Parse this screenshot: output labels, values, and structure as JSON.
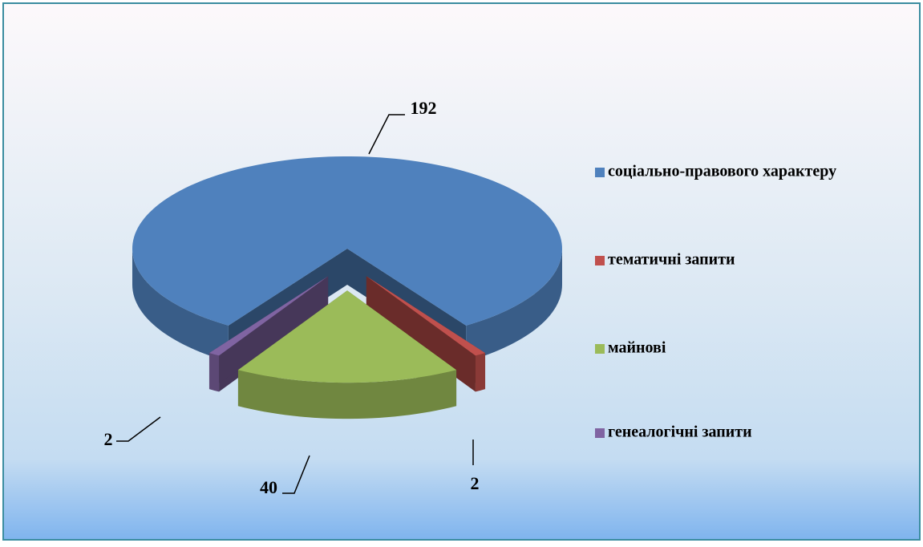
{
  "chart_data": {
    "type": "pie3d",
    "categories": [
      "соціально-правового характеру",
      "тематичні запити",
      "майнові",
      "генеалогічні запити"
    ],
    "values": [
      192,
      2,
      40,
      2
    ],
    "colors": [
      "#4f81bd",
      "#c0504d",
      "#9bbb59",
      "#8064a2"
    ],
    "legend": "right"
  }
}
